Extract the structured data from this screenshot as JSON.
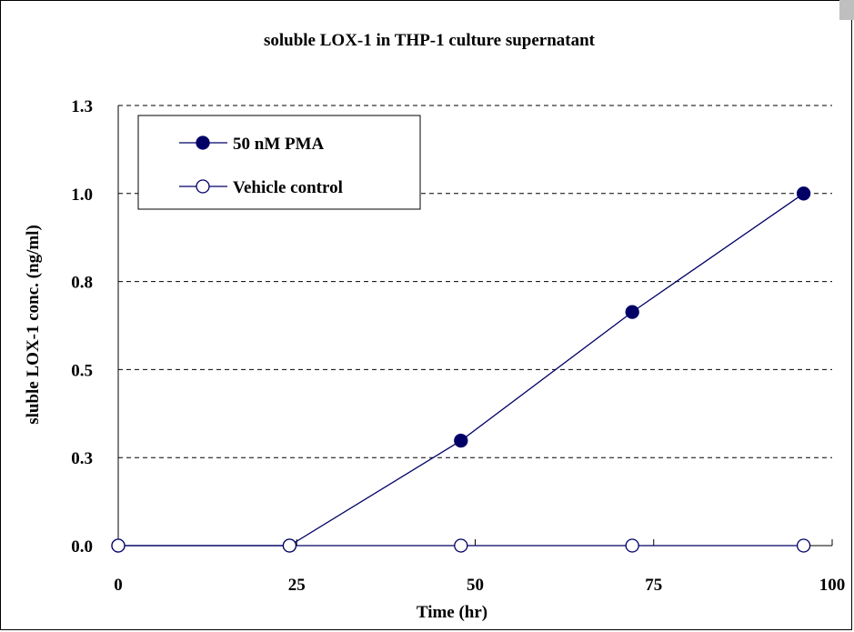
{
  "chart_data": {
    "type": "line",
    "title": "soluble LOX-1 in THP-1 culture supernatant",
    "xlabel": "Time (hr)",
    "ylabel": "sluble LOX-1 conc. (ng/ml)",
    "xlim": [
      0,
      100
    ],
    "ylim": [
      0,
      1.3
    ],
    "x_ticks": [
      0,
      25,
      50,
      75,
      100
    ],
    "x_tick_labels": [
      "0",
      "25",
      "50",
      "75",
      "100"
    ],
    "y_ticks": [
      0,
      0.26,
      0.52,
      0.78,
      1.04,
      1.3
    ],
    "y_tick_labels": [
      "0.0",
      "0.3",
      "0.5",
      "0.8",
      "1.0",
      "1.3"
    ],
    "grid": "horizontal dashed",
    "legend_position": "top-left",
    "series": [
      {
        "name": "50 nM PMA",
        "marker": "filled-circle",
        "color": "#000066",
        "x": [
          0,
          24,
          48,
          72,
          96
        ],
        "y": [
          0.0,
          0.0,
          0.31,
          0.69,
          1.04
        ]
      },
      {
        "name": "Vehicle control",
        "marker": "open-circle",
        "color": "#000066",
        "x": [
          0,
          24,
          48,
          72,
          96
        ],
        "y": [
          0.0,
          0.0,
          0.0,
          0.0,
          0.0
        ]
      }
    ]
  }
}
